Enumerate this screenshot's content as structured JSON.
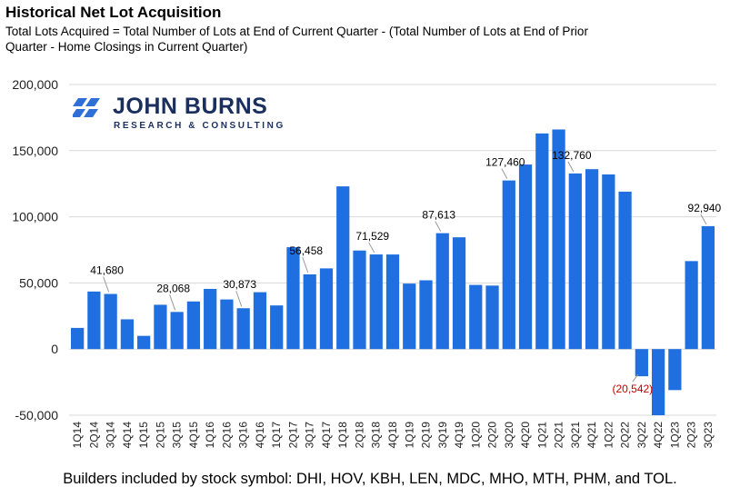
{
  "header": {
    "title": "Historical Net Lot Acquisition",
    "subtitle": "Total Lots Acquired = Total Number of Lots at End of Current Quarter - (Total Number of Lots at End of Prior Quarter - Home Closings in Current Quarter)"
  },
  "logo": {
    "name": "JOHN BURNS",
    "tagline": "RESEARCH & CONSULTING",
    "color": "#1b2f5e",
    "accent": "#2f6fd8"
  },
  "footer": "Builders included by stock symbol: DHI, HOV, KBH, LEN, MDC, MHO, MTH, PHM, and TOL.",
  "chart_data": {
    "type": "bar",
    "bar_color": "#1f6fe0",
    "negative_label_color": "#c00000",
    "ylim": [
      -50000,
      200000
    ],
    "yticks": [
      "200,000",
      "150,000",
      "100,000",
      "50,000",
      "0",
      "-50,000"
    ],
    "ytick_values": [
      200000,
      150000,
      100000,
      50000,
      0,
      -50000
    ],
    "grid": true,
    "categories": [
      "1Q14",
      "2Q14",
      "3Q14",
      "4Q14",
      "1Q15",
      "2Q15",
      "3Q15",
      "4Q15",
      "1Q16",
      "2Q16",
      "3Q16",
      "4Q16",
      "1Q17",
      "2Q17",
      "3Q17",
      "4Q17",
      "1Q18",
      "2Q18",
      "3Q18",
      "4Q18",
      "1Q19",
      "2Q19",
      "3Q19",
      "4Q19",
      "1Q20",
      "2Q20",
      "3Q20",
      "4Q20",
      "1Q21",
      "2Q21",
      "3Q21",
      "4Q21",
      "1Q22",
      "2Q22",
      "3Q22",
      "4Q22",
      "1Q23",
      "2Q23",
      "3Q23"
    ],
    "values": [
      16000,
      43500,
      41680,
      22500,
      10000,
      33500,
      28068,
      36000,
      45500,
      37500,
      30873,
      43000,
      33000,
      77000,
      56458,
      61000,
      123000,
      74500,
      71529,
      71500,
      49500,
      52000,
      87613,
      84500,
      48500,
      48000,
      127460,
      139500,
      163000,
      166000,
      132760,
      136000,
      132000,
      119000,
      -20542,
      -52000,
      -31000,
      66500,
      92940
    ],
    "data_labels": [
      {
        "category": "3Q14",
        "text": "41,680"
      },
      {
        "category": "3Q15",
        "text": "28,068"
      },
      {
        "category": "3Q16",
        "text": "30,873"
      },
      {
        "category": "3Q17",
        "text": "56,458"
      },
      {
        "category": "3Q18",
        "text": "71,529"
      },
      {
        "category": "3Q19",
        "text": "87,613"
      },
      {
        "category": "3Q20",
        "text": "127,460"
      },
      {
        "category": "3Q21",
        "text": "132,760"
      },
      {
        "category": "3Q22",
        "text": "(20,542)"
      },
      {
        "category": "3Q23",
        "text": "92,940"
      }
    ]
  }
}
